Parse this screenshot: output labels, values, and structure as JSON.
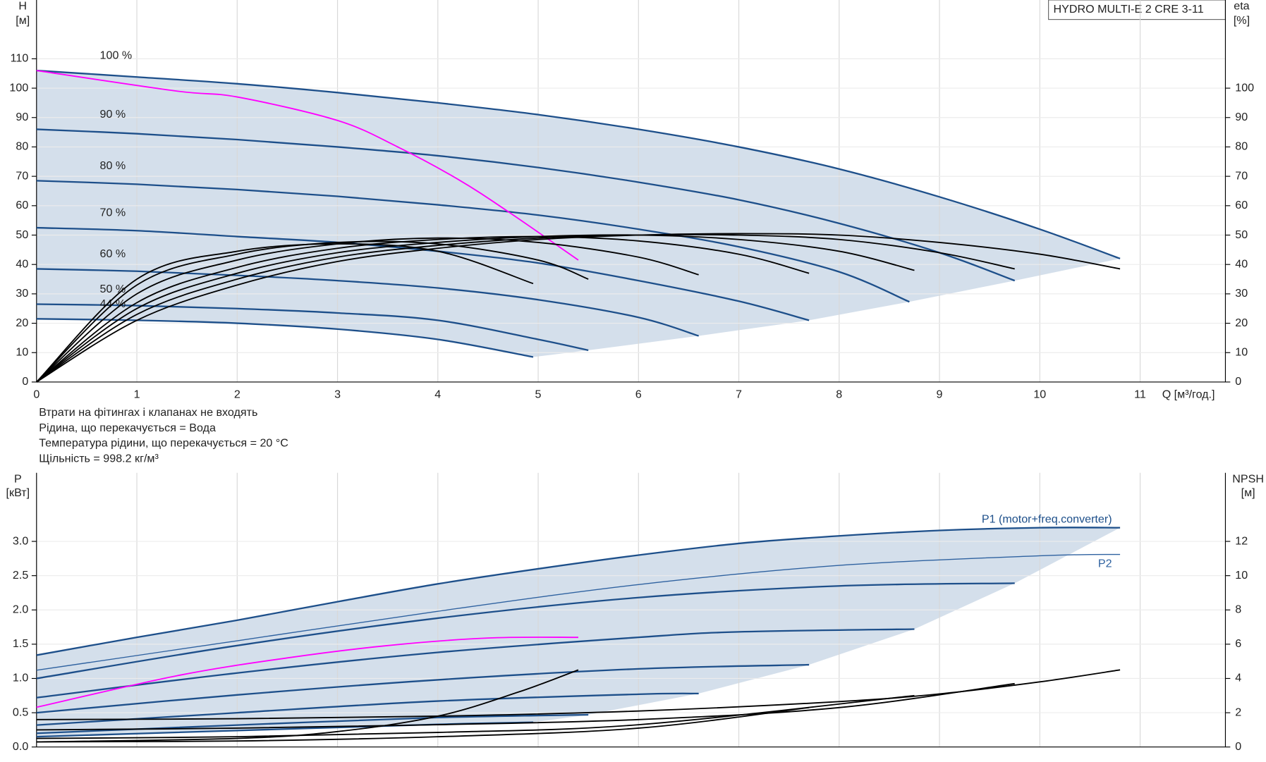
{
  "notes": [
    "Втрати на фітингах і клапанах не входять",
    "Рідина, що перекачується = Вода",
    "Температура рідини, що перекачується = 20 °C",
    "Щільність = 998.2 кг/м³"
  ],
  "chart_data": [
    {
      "type": "line",
      "title": "HYDRO MULTI-E 2 CRE 3-11",
      "xlabel": "Q [м³/год.]",
      "ylabel": "H",
      "yunit": "[м]",
      "y2label": "eta",
      "y2unit": "[%]",
      "grid": true,
      "xlim": [
        0,
        11.85
      ],
      "ylim": [
        0,
        130
      ],
      "y2lim": [
        0,
        130
      ],
      "xticks": [
        0,
        1,
        2,
        3,
        4,
        5,
        6,
        7,
        8,
        9,
        10,
        11
      ],
      "yticks": [
        0,
        10,
        20,
        30,
        40,
        50,
        60,
        70,
        80,
        90,
        100,
        110
      ],
      "y2ticks": [
        0,
        10,
        20,
        30,
        40,
        50,
        60,
        70,
        80,
        90,
        100
      ],
      "series": [
        {
          "name": "100 %",
          "color": "#1d4f8a",
          "x": [
            0,
            1,
            2,
            3,
            4,
            5,
            6,
            7,
            8,
            9,
            10,
            10.8
          ],
          "values": [
            106,
            103.8,
            101.5,
            98.5,
            95,
            91,
            86,
            80,
            72.5,
            63,
            52,
            42
          ]
        },
        {
          "name": "90 %",
          "color": "#1d4f8a",
          "x": [
            0,
            1,
            2,
            3,
            4,
            5,
            6,
            7,
            8,
            9,
            9.75
          ],
          "values": [
            86,
            84.5,
            82.5,
            80,
            77,
            73,
            68,
            62,
            54,
            44,
            34.5
          ]
        },
        {
          "name": "80 %",
          "color": "#1d4f8a",
          "x": [
            0,
            1,
            2,
            3,
            4,
            5,
            6,
            7,
            8,
            8.7
          ],
          "values": [
            68.5,
            67.3,
            65.5,
            63.2,
            60.3,
            56.8,
            52,
            46,
            37.5,
            27.3
          ]
        },
        {
          "name": "70 %",
          "color": "#1d4f8a",
          "x": [
            0,
            1,
            2,
            3,
            4,
            5,
            6,
            7,
            7.7
          ],
          "values": [
            52.5,
            51.5,
            49.5,
            47.5,
            44.5,
            40.5,
            34.5,
            27.5,
            21
          ]
        },
        {
          "name": "60 %",
          "color": "#1d4f8a",
          "x": [
            0,
            1,
            2,
            3,
            4,
            5,
            6,
            6.6
          ],
          "values": [
            38.5,
            37.7,
            36.3,
            34.5,
            32,
            28,
            22,
            15.7
          ]
        },
        {
          "name": "50 %",
          "color": "#1d4f8a",
          "x": [
            0,
            1,
            2,
            3,
            4,
            5,
            5.5
          ],
          "values": [
            26.5,
            26,
            25,
            23.5,
            21,
            14.5,
            10.8
          ]
        },
        {
          "name": "44 %",
          "color": "#1d4f8a",
          "x": [
            0,
            1,
            2,
            3,
            4,
            4.95
          ],
          "values": [
            21.5,
            21,
            20,
            18,
            14.5,
            8.5
          ]
        },
        {
          "color": "#ff00ff",
          "x": [
            0,
            1.4,
            2,
            3,
            3.6,
            4.2,
            4.7,
            5.4
          ],
          "values": [
            106,
            99,
            97,
            89,
            80,
            69,
            58,
            41.5
          ]
        },
        {
          "color": "#000000",
          "axis": "y2",
          "x": [
            0,
            1,
            2,
            3,
            4,
            5,
            6,
            7,
            8,
            9,
            10,
            10.8
          ],
          "values": [
            0,
            21,
            33,
            41,
            45.5,
            48.5,
            50,
            50.5,
            50,
            47.5,
            43.5,
            38.5
          ]
        },
        {
          "color": "#000000",
          "axis": "y2",
          "x": [
            0,
            1,
            2,
            3,
            4,
            5,
            6,
            7,
            8,
            9,
            9.75
          ],
          "values": [
            0,
            23,
            35,
            42.5,
            46.5,
            49,
            50,
            50,
            48.5,
            44,
            38.5
          ]
        },
        {
          "color": "#000000",
          "axis": "y2",
          "x": [
            0,
            1,
            2,
            3,
            4,
            5,
            6,
            7,
            8,
            8.75
          ],
          "values": [
            0,
            25,
            37,
            44,
            47.5,
            49.5,
            50,
            48.5,
            44.5,
            38
          ]
        },
        {
          "color": "#000000",
          "axis": "y2",
          "x": [
            0,
            1,
            2,
            3,
            4,
            5,
            6,
            7,
            7.7
          ],
          "values": [
            0,
            27,
            39,
            45.5,
            48.5,
            49.5,
            48,
            43.5,
            37
          ]
        },
        {
          "color": "#000000",
          "axis": "y2",
          "x": [
            0,
            1,
            2,
            3,
            4,
            5,
            6,
            6.6
          ],
          "values": [
            0,
            30,
            41.5,
            47,
            49,
            47.5,
            42.5,
            36.5
          ]
        },
        {
          "color": "#000000",
          "axis": "y2",
          "x": [
            0,
            1,
            2,
            3,
            4,
            5,
            5.5
          ],
          "values": [
            0,
            33,
            43.5,
            47.5,
            47,
            41.5,
            35
          ]
        },
        {
          "color": "#000000",
          "axis": "y2",
          "x": [
            0,
            1,
            2,
            3,
            4,
            4.95
          ],
          "values": [
            0,
            35,
            44.5,
            47,
            44.5,
            33.5
          ]
        }
      ]
    },
    {
      "type": "line",
      "ylabel": "P",
      "yunit": "[кВт]",
      "y2label": "NPSH",
      "y2unit": "[м]",
      "grid": true,
      "xlim": [
        0,
        11.85
      ],
      "ylim": [
        0,
        4
      ],
      "y2lim": [
        0,
        16
      ],
      "yticks": [
        {
          "value": 0,
          "label": "0.0"
        },
        0.5,
        {
          "value": 1,
          "label": "1.0"
        },
        1.5,
        {
          "value": 2,
          "label": "2.0"
        },
        2.5,
        {
          "value": 3,
          "label": "3.0"
        }
      ],
      "y2ticks": [
        0,
        2,
        4,
        6,
        8,
        10,
        12
      ],
      "series": [
        {
          "name": "P1 (motor+freq.converter)",
          "color": "#1d4f8a",
          "x": [
            0,
            1,
            2,
            3,
            4,
            5,
            6,
            7,
            8,
            9,
            10,
            10.8
          ],
          "values": [
            1.34,
            1.6,
            1.85,
            2.12,
            2.38,
            2.6,
            2.8,
            2.97,
            3.08,
            3.16,
            3.2,
            3.2
          ]
        },
        {
          "name": "P2",
          "color": "#2f62a0",
          "x": [
            0,
            2,
            4,
            6,
            8,
            10,
            10.8
          ],
          "values": [
            1.12,
            1.55,
            1.98,
            2.37,
            2.65,
            2.79,
            2.81
          ]
        },
        {
          "color": "#1d4f8a",
          "x": [
            0,
            2,
            4,
            6,
            8,
            9.75
          ],
          "values": [
            1.0,
            1.48,
            1.88,
            2.18,
            2.35,
            2.39
          ]
        },
        {
          "color": "#1d4f8a",
          "x": [
            0,
            2,
            4,
            6,
            7,
            8.75
          ],
          "values": [
            0.72,
            1.08,
            1.38,
            1.6,
            1.68,
            1.72
          ]
        },
        {
          "color": "#1d4f8a",
          "x": [
            0,
            2,
            4,
            6,
            7.7
          ],
          "values": [
            0.5,
            0.76,
            0.98,
            1.14,
            1.2
          ]
        },
        {
          "color": "#1d4f8a",
          "x": [
            0,
            2,
            4,
            6,
            6.6
          ],
          "values": [
            0.32,
            0.5,
            0.67,
            0.77,
            0.78
          ]
        },
        {
          "color": "#1d4f8a",
          "x": [
            0,
            2,
            4,
            5.5
          ],
          "values": [
            0.2,
            0.32,
            0.43,
            0.47
          ]
        },
        {
          "color": "#1d4f8a",
          "x": [
            0,
            2,
            4,
            4.95
          ],
          "values": [
            0.15,
            0.24,
            0.33,
            0.36
          ]
        },
        {
          "color": "#ff00ff",
          "x": [
            0,
            1.4,
            2.5,
            3.5,
            4.5,
            5.4
          ],
          "values": [
            0.58,
            1.04,
            1.3,
            1.48,
            1.59,
            1.6
          ]
        },
        {
          "color": "#000000",
          "axis": "y2",
          "x": [
            0,
            2,
            4,
            6,
            8,
            9,
            10,
            10.8
          ],
          "values": [
            1.6,
            1.65,
            1.8,
            2.1,
            2.65,
            3.1,
            3.8,
            4.5
          ]
        },
        {
          "color": "#000000",
          "axis": "y2",
          "x": [
            0,
            2,
            4,
            6,
            8,
            9.75
          ],
          "values": [
            1.0,
            1.1,
            1.3,
            1.6,
            2.3,
            3.7
          ]
        },
        {
          "color": "#000000",
          "axis": "y2",
          "x": [
            0,
            2,
            4,
            6,
            8.75
          ],
          "values": [
            0.5,
            0.6,
            0.85,
            1.3,
            3.0
          ]
        },
        {
          "color": "#000000",
          "axis": "y2",
          "x": [
            0,
            2,
            4,
            6,
            7.7
          ],
          "values": [
            0.3,
            0.35,
            0.6,
            1.1,
            2.3
          ]
        },
        {
          "color": "#000000",
          "axis": "y2",
          "x": [
            0,
            2,
            3,
            4,
            4.8,
            5.4
          ],
          "values": [
            0.3,
            0.5,
            0.9,
            1.8,
            3.2,
            4.5
          ]
        }
      ]
    }
  ]
}
